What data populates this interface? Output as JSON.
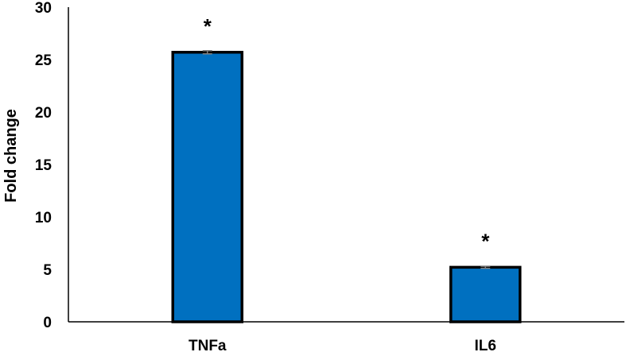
{
  "chart_data": {
    "type": "bar",
    "categories": [
      "TNFa",
      "IL6"
    ],
    "values": [
      25.7,
      5.2
    ],
    "error": [
      0.15,
      0.1
    ],
    "annotations": [
      "*",
      "*"
    ],
    "title": "",
    "xlabel": "",
    "ylabel": "Fold change",
    "ylim": [
      0,
      30
    ],
    "yticks": [
      0,
      5,
      10,
      15,
      20,
      25,
      30
    ],
    "grid": false,
    "legend": "none",
    "bar_color": "#0070C0",
    "bar_edge_color": "#000000",
    "error_color": "#7f7f7f"
  }
}
